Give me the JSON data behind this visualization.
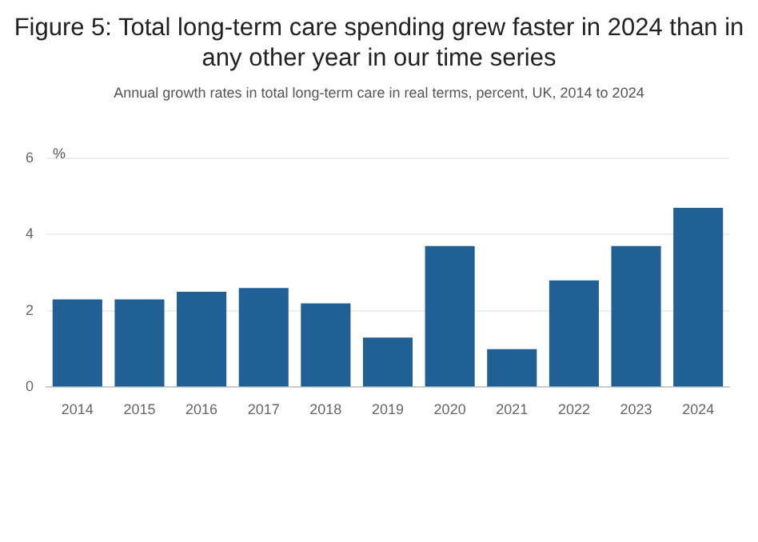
{
  "chart_data": {
    "type": "bar",
    "title": "Figure 5: Total long-term care spending grew faster in 2024 than in any other year in our time series",
    "subtitle": "Annual growth rates in total long-term care in real terms, percent, UK, 2014 to 2024",
    "ylabel": "%",
    "categories": [
      "2014",
      "2015",
      "2016",
      "2017",
      "2018",
      "2019",
      "2020",
      "2021",
      "2022",
      "2023",
      "2024"
    ],
    "values": [
      2.3,
      2.3,
      2.5,
      2.6,
      2.2,
      1.3,
      3.7,
      1.0,
      2.8,
      3.7,
      4.7
    ],
    "color": "#206095",
    "ylim": [
      0,
      6
    ],
    "yticks": [
      0,
      2,
      4,
      6
    ],
    "grid": "y",
    "legend": false
  }
}
